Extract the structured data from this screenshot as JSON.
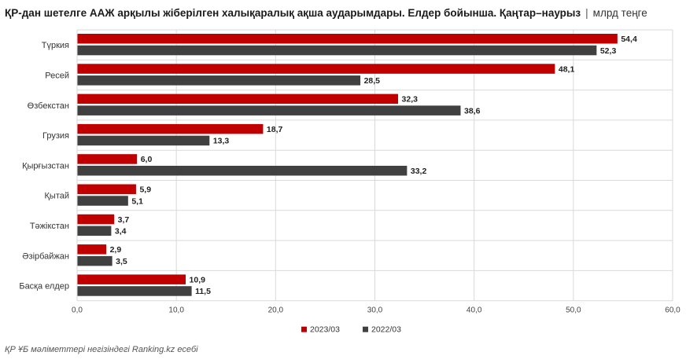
{
  "title": "ҚР-дан шетелге ААЖ арқылы жіберілген халықаралық ақша аударымдары. Елдер бойынша. Қаңтар–наурыз",
  "title_separator": "|",
  "unit": "млрд теңге",
  "source": "ҚР ҰБ мәліметтері негізіндегі Ranking.kz есебі",
  "colors": {
    "series_2023": "#c00000",
    "series_2022": "#404040",
    "grid": "#d9d9d9"
  },
  "chart_data": {
    "type": "bar",
    "orientation": "horizontal",
    "categories": [
      "Түркия",
      "Ресей",
      "Өзбекстан",
      "Грузия",
      "Қырғызстан",
      "Қытай",
      "Тәжікстан",
      "Әзірбайжан",
      "Басқа елдер"
    ],
    "series": [
      {
        "name": "2023/03",
        "color": "#c00000",
        "values": [
          54.4,
          48.1,
          32.3,
          18.7,
          6.0,
          5.9,
          3.7,
          2.9,
          10.9
        ],
        "labels": [
          "54,4",
          "48,1",
          "32,3",
          "18,7",
          "6,0",
          "5,9",
          "3,7",
          "2,9",
          "10,9"
        ]
      },
      {
        "name": "2022/03",
        "color": "#404040",
        "values": [
          52.3,
          28.5,
          38.6,
          13.3,
          33.2,
          5.1,
          3.4,
          3.5,
          11.5
        ],
        "labels": [
          "52,3",
          "28,5",
          "38,6",
          "13,3",
          "33,2",
          "5,1",
          "3,4",
          "3,5",
          "11,5"
        ]
      }
    ],
    "xlim": [
      0,
      60
    ],
    "xticks": [
      "0,0",
      "10,0",
      "20,0",
      "30,0",
      "40,0",
      "50,0",
      "60,0"
    ],
    "grid": true,
    "legend": "bottom-center"
  }
}
